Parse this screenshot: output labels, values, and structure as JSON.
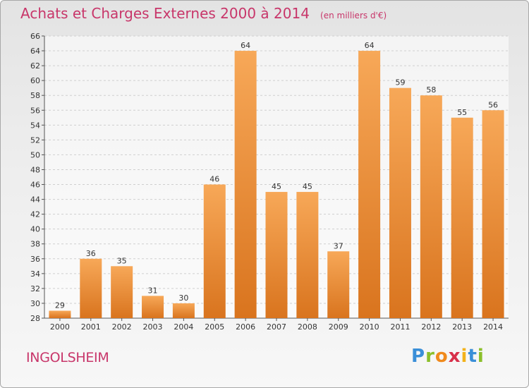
{
  "header": {
    "title": "Achats et Charges Externes 2000 à 2014",
    "unit": "(en milliers d'€)"
  },
  "footer": {
    "commune": "INGOLSHEIM",
    "logo_letters": [
      {
        "char": "P",
        "color": "#3a8fd8"
      },
      {
        "char": "r",
        "color": "#8bbf2a"
      },
      {
        "char": "o",
        "color": "#f08a1c"
      },
      {
        "char": "x",
        "color": "#d8304a"
      },
      {
        "char": "i",
        "color": "#f2b21b"
      },
      {
        "char": "t",
        "color": "#3a8fd8"
      },
      {
        "char": "i",
        "color": "#8bbf2a"
      }
    ]
  },
  "colors": {
    "bar_light": "#f7a858",
    "bar_dark": "#d9741e",
    "title": "#c8366a",
    "grid": "#cfcfcf",
    "axis_text": "#333333"
  },
  "chart_data": {
    "type": "bar",
    "title": "Achats et Charges Externes 2000 à 2014",
    "subtitle": "(en milliers d'€)",
    "categories": [
      "2000",
      "2001",
      "2002",
      "2003",
      "2004",
      "2005",
      "2006",
      "2007",
      "2008",
      "2009",
      "2010",
      "2011",
      "2012",
      "2013",
      "2014"
    ],
    "values": [
      29,
      36,
      35,
      31,
      30,
      46,
      64,
      45,
      45,
      37,
      64,
      59,
      58,
      55,
      56
    ],
    "ylim": [
      28,
      66
    ],
    "yticks": [
      28,
      30,
      32,
      34,
      36,
      38,
      40,
      42,
      44,
      46,
      48,
      50,
      52,
      54,
      56,
      58,
      60,
      62,
      64,
      66
    ],
    "xlabel": "",
    "ylabel": "",
    "grid": true,
    "data_labels": true
  }
}
